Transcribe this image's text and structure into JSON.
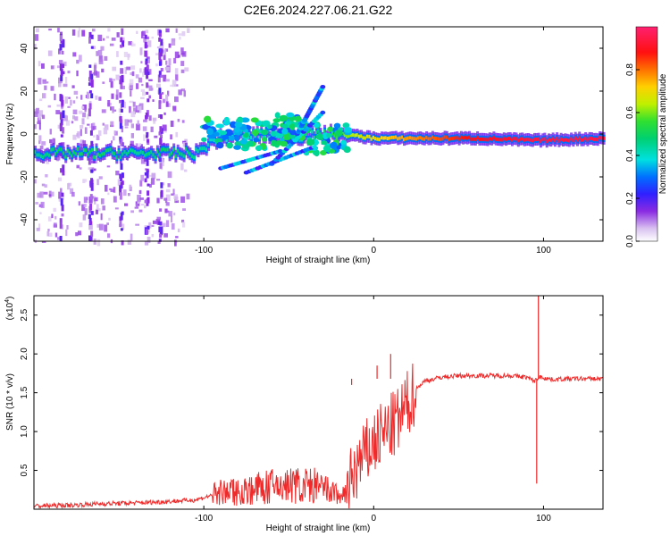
{
  "title": "C2E6.2024.227.06.21.G22",
  "chart_data": [
    {
      "type": "heatmap",
      "xlabel": "Height of straight line (km)",
      "ylabel": "Frequency (Hz)",
      "xlim": [
        -200,
        135
      ],
      "ylim": [
        -50,
        50
      ],
      "x_ticks": [
        "-100",
        "0",
        "100"
      ],
      "x_tick_values": [
        -100,
        0,
        100
      ],
      "y_ticks": [
        "-40",
        "-20",
        "0",
        "20",
        "40"
      ],
      "y_tick_values": [
        -40,
        -20,
        0,
        20,
        40
      ],
      "colorbar": {
        "label": "Normalized spectral amplitude",
        "ticks": [
          "0.0",
          "0.2",
          "0.4",
          "0.6",
          "0.8"
        ],
        "tick_values": [
          0.0,
          0.2,
          0.4,
          0.6,
          0.8
        ],
        "range": [
          0,
          1
        ]
      },
      "ridge": [
        {
          "x": -200,
          "freq": -9,
          "amp": 0.45
        },
        {
          "x": -180,
          "freq": -9,
          "amp": 0.5
        },
        {
          "x": -160,
          "freq": -9,
          "amp": 0.5
        },
        {
          "x": -140,
          "freq": -9,
          "amp": 0.45
        },
        {
          "x": -120,
          "freq": -9,
          "amp": 0.5
        },
        {
          "x": -105,
          "freq": -9,
          "amp": 0.45
        },
        {
          "x": -95,
          "freq": -3,
          "amp": 0.4
        },
        {
          "x": -80,
          "freq": 0,
          "amp": 0.4
        },
        {
          "x": -60,
          "freq": -1,
          "amp": 0.4
        },
        {
          "x": -40,
          "freq": -1,
          "amp": 0.4
        },
        {
          "x": -25,
          "freq": 0,
          "amp": 0.55
        },
        {
          "x": -10,
          "freq": -1,
          "amp": 0.65
        },
        {
          "x": 0,
          "freq": -2,
          "amp": 0.7
        },
        {
          "x": 30,
          "freq": -2,
          "amp": 0.8
        },
        {
          "x": 60,
          "freq": -2,
          "amp": 0.9
        },
        {
          "x": 95,
          "freq": -3,
          "amp": 0.95
        },
        {
          "x": 135,
          "freq": -2,
          "amp": 0.95
        }
      ]
    },
    {
      "type": "line",
      "xlabel": "Height of straight line (km)",
      "ylabel": "SNR (10 * v/v)",
      "multiplier": "(x10",
      "multiplier_exp": "4",
      "multiplier_close": ")",
      "xlim": [
        -200,
        135
      ],
      "ylim": [
        0,
        2.75
      ],
      "x_ticks": [
        "-100",
        "0",
        "100"
      ],
      "x_tick_values": [
        -100,
        0,
        100
      ],
      "y_ticks": [
        "0.5",
        "1.0",
        "1.5",
        "2.0",
        "2.5"
      ],
      "y_tick_values": [
        0.5,
        1.0,
        1.5,
        2.0,
        2.5
      ],
      "series": [
        {
          "color": "#ee2a2a",
          "x": [
            -200,
            -180,
            -160,
            -140,
            -120,
            -105,
            -95,
            -85,
            -75,
            -65,
            -55,
            -45,
            -35,
            -25,
            -18,
            -12,
            -5,
            0,
            5,
            10,
            15,
            20,
            25,
            30,
            40,
            50,
            60,
            70,
            80,
            90,
            95,
            97,
            99,
            105,
            115,
            125,
            135
          ],
          "y": [
            0.04,
            0.05,
            0.07,
            0.08,
            0.1,
            0.12,
            0.18,
            0.2,
            0.22,
            0.25,
            0.27,
            0.28,
            0.27,
            0.2,
            0.15,
            0.45,
            0.7,
            0.85,
            0.95,
            1.05,
            1.15,
            1.35,
            1.55,
            1.65,
            1.7,
            1.72,
            1.72,
            1.72,
            1.72,
            1.7,
            1.65,
            1.7,
            1.7,
            1.67,
            1.68,
            1.68,
            1.68
          ]
        }
      ],
      "spikes": [
        {
          "x": 97,
          "y": 2.75
        },
        {
          "x": 96,
          "y": 0.33
        },
        {
          "x": 2,
          "y": 1.85
        },
        {
          "x": 10,
          "y": 2.0
        },
        {
          "x": -13,
          "y": 1.6
        }
      ]
    }
  ]
}
